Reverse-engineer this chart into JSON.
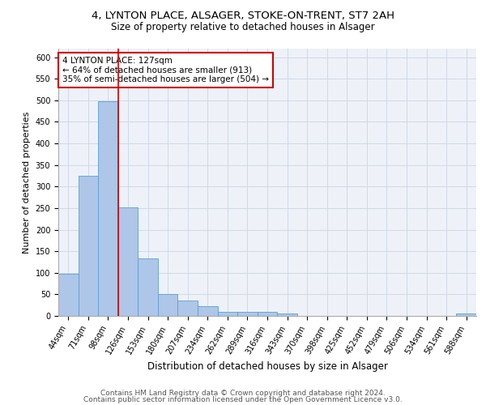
{
  "title1": "4, LYNTON PLACE, ALSAGER, STOKE-ON-TRENT, ST7 2AH",
  "title2": "Size of property relative to detached houses in Alsager",
  "xlabel": "Distribution of detached houses by size in Alsager",
  "ylabel": "Number of detached properties",
  "categories": [
    "44sqm",
    "71sqm",
    "98sqm",
    "126sqm",
    "153sqm",
    "180sqm",
    "207sqm",
    "234sqm",
    "262sqm",
    "289sqm",
    "316sqm",
    "343sqm",
    "370sqm",
    "398sqm",
    "425sqm",
    "452sqm",
    "479sqm",
    "506sqm",
    "534sqm",
    "561sqm",
    "588sqm"
  ],
  "values": [
    97,
    325,
    497,
    251,
    134,
    51,
    36,
    22,
    9,
    10,
    10,
    5,
    0,
    0,
    0,
    0,
    0,
    0,
    0,
    0,
    5
  ],
  "bar_color": "#aec6e8",
  "bar_edge_color": "#5a9fd4",
  "bar_edge_width": 0.6,
  "vline_color": "#cc0000",
  "annotation_text": "4 LYNTON PLACE: 127sqm\n← 64% of detached houses are smaller (913)\n35% of semi-detached houses are larger (504) →",
  "annotation_box_color": "#ffffff",
  "annotation_box_edge_color": "#cc0000",
  "ylim": [
    0,
    620
  ],
  "yticks": [
    0,
    50,
    100,
    150,
    200,
    250,
    300,
    350,
    400,
    450,
    500,
    550,
    600
  ],
  "footer1": "Contains HM Land Registry data © Crown copyright and database right 2024.",
  "footer2": "Contains public sector information licensed under the Open Government Licence v3.0.",
  "title1_fontsize": 9.5,
  "title2_fontsize": 8.5,
  "xlabel_fontsize": 8.5,
  "ylabel_fontsize": 8,
  "tick_fontsize": 7,
  "annotation_fontsize": 7.5,
  "footer_fontsize": 6.5,
  "grid_color": "#d0d8e8",
  "bg_color": "#eef2f8"
}
